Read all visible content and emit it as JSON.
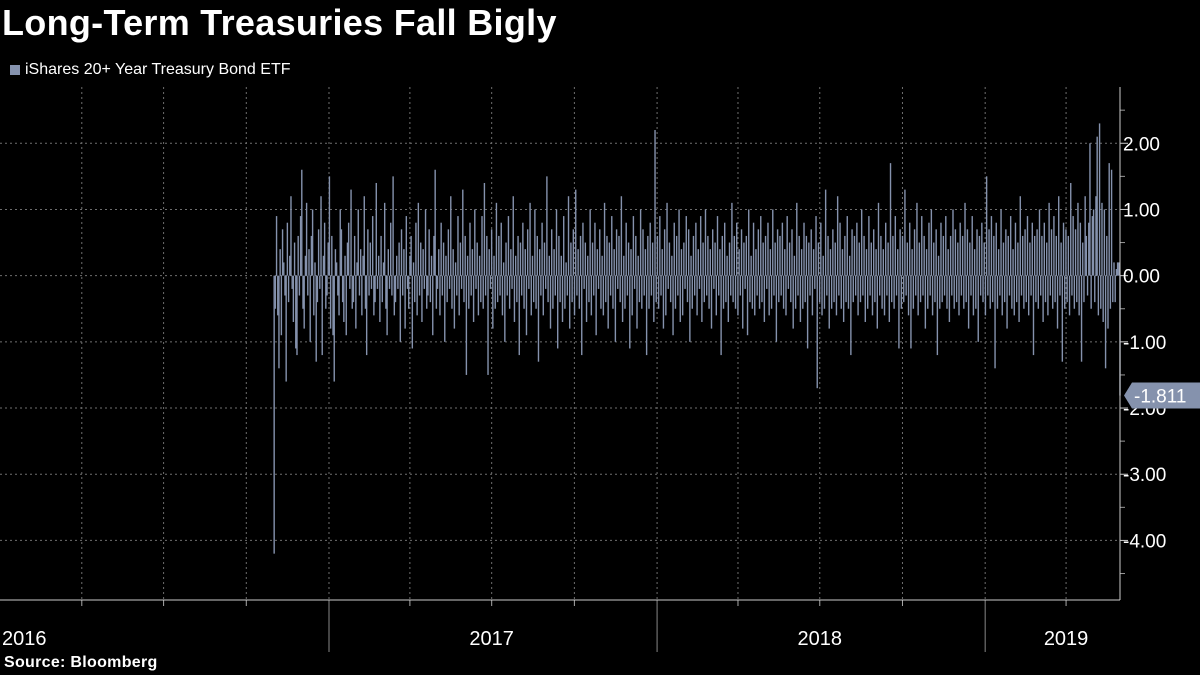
{
  "title": "Long-Term Treasuries Fall Bigly",
  "source": "Source: Bloomberg",
  "colors": {
    "series": "#8592AD",
    "grid": "#6F6F6F",
    "background": "#000000",
    "text": "#FFFFFF"
  },
  "chart_data": {
    "type": "bar",
    "title": "Long-Term Treasuries Fall Bigly",
    "xlabel": "",
    "ylabel": "",
    "ylim": [
      -4.9,
      2.85
    ],
    "y_ticks": [
      -4.0,
      -3.0,
      -2.0,
      -1.0,
      0.0,
      1.0,
      2.0
    ],
    "y_tick_labels": [
      "-4.00",
      "-3.00",
      "-2.00",
      "-1.00",
      "0.00",
      "1.00",
      "2.00"
    ],
    "grid": true,
    "legend": "top-left",
    "x_range": [
      "2016-01-01",
      "2019-05-31"
    ],
    "x_tick_labels": [
      {
        "label": "2016",
        "date": "2016-01-01"
      },
      {
        "label": "2017",
        "date": "2017-07-01"
      },
      {
        "label": "2018",
        "date": "2018-07-01"
      },
      {
        "label": "2019",
        "date": "2019-04-01"
      }
    ],
    "series": [
      {
        "name": "iShares 20+ Year Treasury Bond ETF",
        "frequency": "daily",
        "start_date": "2016-11-01",
        "last_value": -1.811,
        "last_value_label": "-1.811",
        "values": [
          -4.2,
          -0.5,
          0.9,
          -0.6,
          -1.4,
          0.4,
          -0.9,
          0.7,
          0.2,
          -0.3,
          -1.6,
          0.8,
          -0.4,
          0.3,
          1.2,
          -0.2,
          -0.7,
          0.5,
          -1.1,
          -1.2,
          0.6,
          -0.3,
          0.9,
          1.6,
          -0.5,
          -0.8,
          0.3,
          1.1,
          -0.3,
          0.4,
          -1.0,
          0.6,
          1.0,
          -0.6,
          0.2,
          -1.3,
          -0.4,
          0.7,
          -0.2,
          1.2,
          -1.2,
          0.3,
          0.8,
          -0.5,
          -0.3,
          0.5,
          1.5,
          -0.8,
          0.6,
          -0.9,
          -1.6,
          0.4,
          0.2,
          -0.3,
          -0.6,
          1.0,
          0.7,
          -0.4,
          -0.7,
          0.3,
          -0.9,
          0.5,
          0.8,
          -0.2,
          1.3,
          -0.5,
          -0.4,
          0.6,
          -0.8,
          0.2,
          1.0,
          -0.3,
          0.4,
          -0.6,
          0.3,
          1.2,
          -0.5,
          -1.2,
          0.7,
          -0.3,
          0.5,
          -0.2,
          0.9,
          -0.6,
          -0.4,
          1.4,
          -0.2,
          0.3,
          -0.7,
          0.6,
          -0.4,
          0.2,
          1.1,
          -0.5,
          -0.9,
          0.4,
          -0.2,
          0.8,
          -0.3,
          1.5,
          -0.6,
          -0.4,
          0.3,
          -0.2,
          0.5,
          -1.0,
          0.7,
          -0.3,
          0.4,
          -0.8,
          0.9,
          -0.2,
          -0.5,
          0.3,
          0.6,
          -1.1,
          0.2,
          -0.4,
          0.8,
          -0.6,
          1.1,
          -0.3,
          0.5,
          -0.7,
          0.4,
          -0.2,
          1.0,
          -0.5,
          -0.3,
          0.7,
          -0.4,
          0.3,
          -0.9,
          0.6,
          1.6,
          -0.5,
          -0.2,
          0.4,
          -0.6,
          0.8,
          -0.3,
          0.5,
          -1.0,
          0.3,
          -0.4,
          0.7,
          -0.2,
          1.2,
          -0.5,
          0.4,
          -0.8,
          0.2,
          -0.3,
          0.9,
          -0.6,
          0.5,
          -0.2,
          1.3,
          -0.4,
          0.6,
          -1.5,
          0.3,
          -0.5,
          0.8,
          -0.3,
          0.4,
          -0.7,
          1.0,
          -0.2,
          0.5,
          -0.6,
          0.3,
          -0.4,
          0.9,
          -0.5,
          1.4,
          -0.3,
          0.6,
          -1.5,
          0.4,
          -0.2,
          0.7,
          -0.8,
          0.3,
          -0.5,
          1.1,
          -0.4,
          0.6,
          -0.3,
          0.8,
          -0.6,
          0.2,
          -1.0,
          0.5,
          -0.3,
          0.9,
          -0.5,
          0.4,
          -0.2,
          1.2,
          -0.7,
          0.3,
          -0.4,
          0.6,
          -1.2,
          0.5,
          -0.3,
          0.8,
          -0.5,
          0.4,
          -0.9,
          0.7,
          -0.2,
          1.1,
          -0.6,
          0.3,
          -0.4,
          1.0,
          -0.5,
          0.6,
          -1.3,
          0.4,
          -0.3,
          0.8,
          -0.6,
          0.5,
          -0.2,
          1.5,
          -0.4,
          0.3,
          -0.8,
          0.7,
          -0.5,
          0.4,
          -0.3,
          1.0,
          -1.1,
          0.6,
          -0.4,
          0.3,
          -0.7,
          0.9,
          -0.5,
          0.2,
          -0.3,
          1.2,
          -0.8,
          0.5,
          -0.4,
          0.7,
          -0.6,
          1.3,
          -0.3,
          0.4,
          -0.5,
          0.6,
          -1.2,
          0.8,
          -0.2,
          0.5,
          -0.7,
          0.3,
          -0.4,
          1.0,
          -0.6,
          0.5,
          -0.3,
          0.8,
          -0.9,
          0.4,
          -0.2,
          0.7,
          -0.5,
          0.3,
          -0.6,
          1.1,
          -0.4,
          0.6,
          -0.8,
          0.5,
          -0.3,
          0.9,
          -0.5,
          0.4,
          -1.0,
          0.7,
          -0.2,
          0.6,
          -0.4,
          1.2,
          -0.7,
          0.3,
          -0.5,
          0.8,
          -0.3,
          0.5,
          -1.1,
          0.4,
          -0.6,
          0.9,
          -0.2,
          0.6,
          -0.8,
          0.3,
          -0.4,
          1.0,
          -0.5,
          0.7,
          -0.3,
          0.4,
          -1.2,
          0.6,
          -0.5,
          0.8,
          -0.3,
          0.5,
          -0.7,
          2.2,
          -0.4,
          0.6,
          -0.5,
          0.9,
          -0.3,
          0.4,
          -0.8,
          0.7,
          -0.6,
          1.1,
          -0.2,
          0.5,
          -0.4,
          0.3,
          -0.9,
          0.8,
          -0.5,
          0.6,
          -0.3,
          1.0,
          -0.7,
          0.4,
          -0.6,
          0.5,
          -0.2,
          0.9,
          -0.4,
          0.7,
          -1.0,
          0.3,
          -0.5,
          0.6,
          -0.3,
          0.8,
          -0.6,
          0.4,
          -0.2,
          0.9,
          -0.7,
          0.5,
          -0.4,
          1.0,
          -0.3,
          0.6,
          -0.5,
          0.4,
          -0.8,
          0.7,
          -0.2,
          0.5,
          -0.6,
          0.9,
          -0.3,
          0.4,
          -1.2,
          0.6,
          -0.5,
          0.8,
          -0.4,
          0.3,
          -0.7,
          0.5,
          -0.3,
          1.1,
          -0.4,
          0.6,
          -0.5,
          0.8,
          -0.6,
          0.4,
          -0.3,
          0.7,
          -0.8,
          0.5,
          -0.2,
          0.6,
          -0.9,
          1.0,
          -0.4,
          0.3,
          -0.5,
          0.8,
          -0.6,
          0.4,
          -0.3,
          0.7,
          -0.5,
          0.9,
          -0.4,
          0.5,
          -0.7,
          0.6,
          -0.2,
          0.8,
          -0.6,
          0.4,
          -0.5,
          1.0,
          -0.3,
          0.5,
          -1.0,
          0.7,
          -0.4,
          0.6,
          -0.3,
          0.8,
          -0.5,
          0.4,
          -0.6,
          0.9,
          -0.2,
          0.5,
          -0.4,
          0.7,
          -0.8,
          0.3,
          -0.5,
          1.1,
          -0.3,
          0.6,
          -0.7,
          0.4,
          -0.5,
          0.8,
          -0.4,
          0.6,
          -1.1,
          0.5,
          -0.3,
          0.7,
          -0.6,
          0.4,
          -0.2,
          0.9,
          -1.7,
          0.5,
          -0.4,
          0.8,
          -0.6,
          0.3,
          -0.5,
          1.3,
          -0.3,
          0.6,
          -0.8,
          0.4,
          -0.5,
          0.7,
          -0.4,
          0.5,
          -0.6,
          1.2,
          -0.3,
          0.8,
          -0.5,
          0.4,
          -0.7,
          0.6,
          -0.4,
          0.9,
          -0.5,
          0.3,
          -1.2,
          0.7,
          -0.4,
          0.6,
          -0.3,
          0.8,
          -0.6,
          0.5,
          -0.4,
          1.0,
          -0.3,
          0.6,
          -0.7,
          0.4,
          -0.5,
          0.9,
          -0.3,
          0.5,
          -0.6,
          0.7,
          -0.4,
          0.4,
          -0.8,
          1.1,
          -0.3,
          0.6,
          -0.5,
          0.4,
          -0.6,
          0.8,
          -0.3,
          0.5,
          -0.7,
          1.7,
          -0.4,
          0.6,
          -0.5,
          0.9,
          -0.3,
          0.4,
          -1.1,
          0.7,
          -0.5,
          0.6,
          -0.4,
          1.3,
          -0.3,
          0.5,
          -0.6,
          0.8,
          -1.1,
          0.4,
          -0.5,
          0.7,
          -0.3,
          1.1,
          -0.6,
          0.5,
          -0.4,
          0.9,
          -0.3,
          0.6,
          -0.8,
          0.4,
          -0.5,
          0.8,
          -0.3,
          1.0,
          -0.6,
          0.5,
          -0.4,
          0.7,
          -1.2,
          0.3,
          -0.5,
          0.8,
          -0.4,
          0.6,
          -0.3,
          0.9,
          -0.5,
          0.4,
          -0.7,
          0.6,
          -0.3,
          1.0,
          -0.5,
          0.7,
          -0.4,
          0.5,
          -0.6,
          0.8,
          -0.3,
          0.6,
          -0.5,
          1.1,
          -0.4,
          0.7,
          -0.8,
          0.5,
          -0.3,
          0.9,
          -0.6,
          0.4,
          -0.5,
          0.7,
          -1.0,
          0.6,
          -0.3,
          0.8,
          -0.4,
          0.5,
          -0.6,
          1.5,
          -0.3,
          0.7,
          -0.5,
          0.9,
          -0.4,
          0.6,
          -1.4,
          0.8,
          -0.5,
          0.4,
          -0.3,
          1.0,
          -0.6,
          0.5,
          -0.4,
          0.7,
          -0.8,
          0.6,
          -0.3,
          0.9,
          -0.5,
          0.4,
          -0.6,
          0.8,
          -0.4,
          0.5,
          -0.7,
          1.2,
          -0.3,
          0.6,
          -0.5,
          0.7,
          -0.4,
          0.9,
          -0.6,
          0.5,
          -0.3,
          0.8,
          -1.2,
          0.6,
          -0.4,
          0.7,
          -0.5,
          1.0,
          -0.3,
          0.6,
          -0.7,
          0.8,
          -0.4,
          0.5,
          -0.6,
          1.1,
          -0.3,
          0.7,
          -0.5,
          0.9,
          -0.4,
          0.6,
          -0.8,
          1.2,
          -0.3,
          0.5,
          -1.3,
          0.8,
          -0.5,
          0.7,
          -0.4,
          0.6,
          -0.6,
          1.4,
          -0.3,
          0.9,
          -0.5,
          0.7,
          -0.4,
          1.1,
          -0.6,
          0.8,
          -1.3,
          0.5,
          -0.4,
          1.2,
          0.6,
          -0.3,
          0.8,
          2.0,
          -0.5,
          0.9,
          1.0,
          -0.4,
          1.2,
          2.1,
          -0.6,
          2.3,
          -0.5,
          1.1,
          -0.7,
          1.0,
          -1.4,
          0.6,
          -0.8,
          1.7,
          -0.5,
          1.6,
          -0.4,
          0.2,
          -0.4,
          0.1,
          0.2,
          0.2,
          -1.811
        ]
      }
    ]
  }
}
